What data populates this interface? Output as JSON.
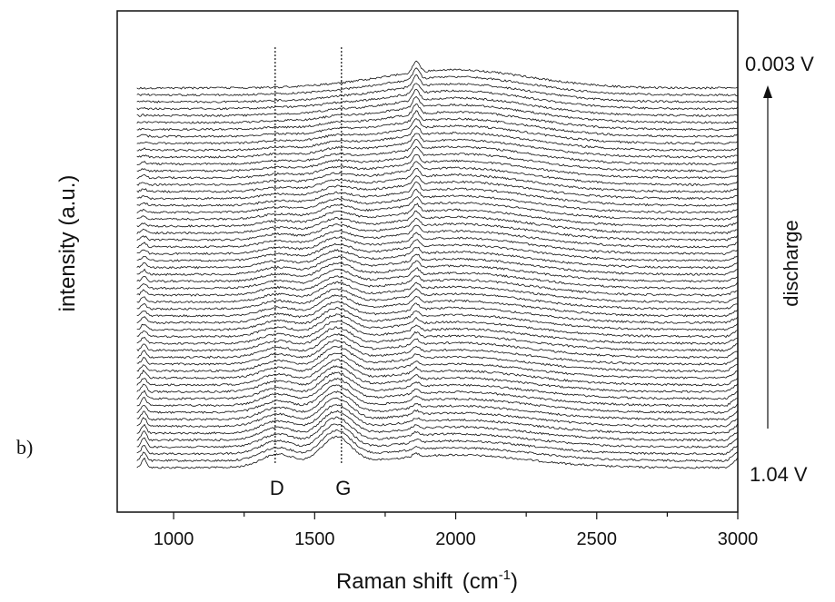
{
  "chart_data": {
    "type": "line",
    "title": "",
    "xlabel": "Raman shift",
    "xlabel_unit_base": "(cm",
    "xlabel_unit_sup": "-1",
    "xlabel_unit_close": ")",
    "ylabel": "intensity (a.u.)",
    "xlim": [
      800,
      3000
    ],
    "x_ticks": [
      "1000",
      "1500",
      "2000",
      "2500",
      "3000"
    ],
    "x_tick_values": [
      1000,
      1500,
      2000,
      2500,
      3000
    ],
    "x_minor_step": 250,
    "y_ticks_visible": false,
    "grid": false,
    "legend": "none",
    "series_count": 56,
    "bands": [
      {
        "label": "D",
        "x": 1360
      },
      {
        "label": "G",
        "x": 1595
      }
    ],
    "annotations": {
      "top_right": "0.003 V",
      "bottom_right": "1.04 V",
      "arrow_label": "discharge",
      "arrow_direction": "up",
      "panel_label": "b)"
    },
    "line_color": "#111111"
  }
}
